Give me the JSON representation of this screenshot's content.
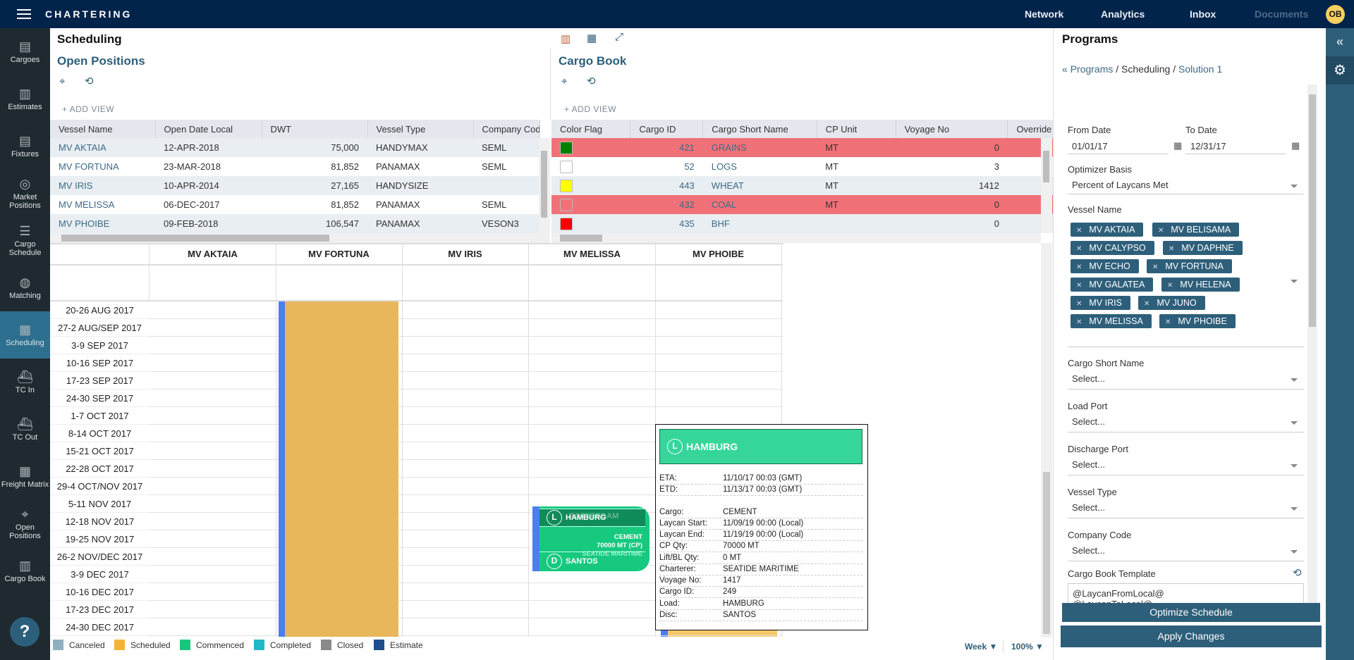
{
  "topbar": {
    "brand": "CHARTERING",
    "nav": [
      "Network",
      "Analytics",
      "Inbox",
      "Documents"
    ],
    "avatar": "OB"
  },
  "sidebar": {
    "items": [
      {
        "label": "Cargoes",
        "icon": "cargoes-icon",
        "glyph": "▤"
      },
      {
        "label": "Estimates",
        "icon": "map-icon",
        "glyph": "▥"
      },
      {
        "label": "Fixtures",
        "icon": "fixtures-icon",
        "glyph": "▤"
      },
      {
        "label": "Market Positions",
        "icon": "map-pin-icon",
        "glyph": "◎"
      },
      {
        "label": "Cargo Schedule",
        "icon": "cargo-schedule-icon",
        "glyph": "☰"
      },
      {
        "label": "Matching",
        "icon": "globe-icon",
        "glyph": "◍"
      },
      {
        "label": "Scheduling",
        "icon": "calendar-icon",
        "glyph": "▦",
        "active": true
      },
      {
        "label": "TC In",
        "icon": "tc-in-icon",
        "glyph": "⛴"
      },
      {
        "label": "TC Out",
        "icon": "tc-out-icon",
        "glyph": "⛴"
      },
      {
        "label": "Freight Matrix",
        "icon": "grid-icon",
        "glyph": "▦"
      },
      {
        "label": "Open Positions",
        "icon": "pin-list-icon",
        "glyph": "⌖"
      },
      {
        "label": "Cargo Book",
        "icon": "book-icon",
        "glyph": "▥"
      }
    ],
    "help": "?"
  },
  "page": {
    "title": "Scheduling"
  },
  "open_positions": {
    "title": "Open Positions",
    "add_view": "+ ADD VIEW",
    "columns": [
      "Vessel Name",
      "Open Date Local",
      "DWT",
      "Vessel Type",
      "Company Code"
    ],
    "rows": [
      [
        "MV AKTAIA",
        "12-APR-2018",
        "75,000",
        "HANDYMAX",
        "SEML"
      ],
      [
        "MV FORTUNA",
        "23-MAR-2018",
        "81,852",
        "PANAMAX",
        "SEML"
      ],
      [
        "MV IRIS",
        "10-APR-2014",
        "27,165",
        "HANDYSIZE",
        ""
      ],
      [
        "MV MELISSA",
        "06-DEC-2017",
        "81,852",
        "PANAMAX",
        "SEML"
      ],
      [
        "MV PHOIBE",
        "09-FEB-2018",
        "106,547",
        "PANAMAX",
        "VESON3"
      ]
    ]
  },
  "cargo_book": {
    "title": "Cargo Book",
    "add_view": "+ ADD VIEW",
    "columns": [
      "Color Flag",
      "Cargo ID",
      "Cargo Short Name",
      "CP Unit",
      "Voyage No",
      "Override Lay"
    ],
    "rows": [
      {
        "flag": "#008000",
        "id": "421",
        "name": "GRAINS",
        "unit": "MT",
        "voyage": "0",
        "highlight": true
      },
      {
        "flag": "#ffffff",
        "id": "52",
        "name": "LOGS",
        "unit": "MT",
        "voyage": "3",
        "highlight": false
      },
      {
        "flag": "#ffff00",
        "id": "443",
        "name": "WHEAT",
        "unit": "MT",
        "voyage": "1412",
        "highlight": false
      },
      {
        "flag": "#f07278",
        "id": "432",
        "name": "COAL",
        "unit": "MT",
        "voyage": "0",
        "highlight": true
      },
      {
        "flag": "#ff0000",
        "id": "435",
        "name": "BHF",
        "unit": "",
        "voyage": "0",
        "highlight": false
      }
    ]
  },
  "schedule": {
    "vessels": [
      "MV AKTAIA",
      "MV FORTUNA",
      "MV IRIS",
      "MV MELISSA",
      "MV PHOIBE"
    ],
    "weeks": [
      "20-26 AUG 2017",
      "27-2 AUG/SEP 2017",
      "3-9 SEP 2017",
      "10-16 SEP 2017",
      "17-23 SEP 2017",
      "24-30 SEP 2017",
      "1-7 OCT 2017",
      "8-14 OCT 2017",
      "15-21 OCT 2017",
      "22-28 OCT 2017",
      "29-4 OCT/NOV 2017",
      "5-11 NOV 2017",
      "12-18 NOV 2017",
      "19-25 NOV 2017",
      "26-2 NOV/DEC 2017",
      "3-9 DEC 2017",
      "10-16 DEC 2017",
      "17-23 DEC 2017",
      "24-30 DEC 2017"
    ],
    "card": {
      "load_badge": "L",
      "load": "HAMBURG",
      "behind": "ROTTERDAM",
      "cargo": "CEMENT",
      "qty": "70000 MT (CP)",
      "charterer": "SEATIDE MARITIME",
      "disc_badge": "D",
      "disc": "SANTOS"
    },
    "tooltip": {
      "badge": "L",
      "port": "HAMBURG",
      "rows": [
        [
          "ETA:",
          "11/10/17 00:03 (GMT)"
        ],
        [
          "ETD:",
          "11/13/17 00:03 (GMT)"
        ],
        [
          "Cargo:",
          "CEMENT"
        ],
        [
          "Laycan Start:",
          "11/09/19 00:00 (Local)"
        ],
        [
          "Laycan End:",
          "11/19/19 00:00 (Local)"
        ],
        [
          "CP Qty:",
          "70000 MT"
        ],
        [
          "Lift/BL Qty:",
          "0 MT"
        ],
        [
          "Charterer:",
          "SEATIDE MARITIME"
        ],
        [
          "Voyage No:",
          "1417"
        ],
        [
          "Cargo ID:",
          "249"
        ],
        [
          "Load:",
          "HAMBURG"
        ],
        [
          "Disc:",
          "SANTOS"
        ]
      ]
    },
    "legend": [
      {
        "label": "Canceled",
        "color": "#8fb0bf"
      },
      {
        "label": "Scheduled",
        "color": "#f5b335"
      },
      {
        "label": "Commenced",
        "color": "#17c97f"
      },
      {
        "label": "Completed",
        "color": "#1fb8c8"
      },
      {
        "label": "Closed",
        "color": "#8a8a8a"
      },
      {
        "label": "Estimate",
        "color": "#1f4e8c"
      }
    ],
    "view": "Week",
    "zoom": "100%"
  },
  "programs": {
    "title": "Programs",
    "breadcrumb": [
      "Programs",
      "Scheduling",
      "Solution 1"
    ],
    "from_label": "From Date",
    "from": "01/01/17",
    "to_label": "To Date",
    "to": "12/31/17",
    "basis_label": "Optimizer Basis",
    "basis": "Percent of Laycans Met",
    "vessel_label": "Vessel Name",
    "vessels": [
      "MV AKTAIA",
      "MV BELISAMA",
      "MV CALYPSO",
      "MV DAPHNE",
      "MV ECHO",
      "MV FORTUNA",
      "MV GALATEA",
      "MV HELENA",
      "MV IRIS",
      "MV JUNO",
      "MV MELISSA",
      "MV PHOIBE"
    ],
    "selects": [
      {
        "label": "Cargo Short Name",
        "value": "Select..."
      },
      {
        "label": "Load Port",
        "value": "Select..."
      },
      {
        "label": "Discharge Port",
        "value": "Select..."
      },
      {
        "label": "Vessel Type",
        "value": "Select..."
      },
      {
        "label": "Company Code",
        "value": "Select..."
      }
    ],
    "template_label": "Cargo Book Template",
    "template": "@LaycanFromLocal@\n@LaycanToLocal@",
    "optimize": "Optimize Schedule",
    "apply": "Apply Changes"
  }
}
